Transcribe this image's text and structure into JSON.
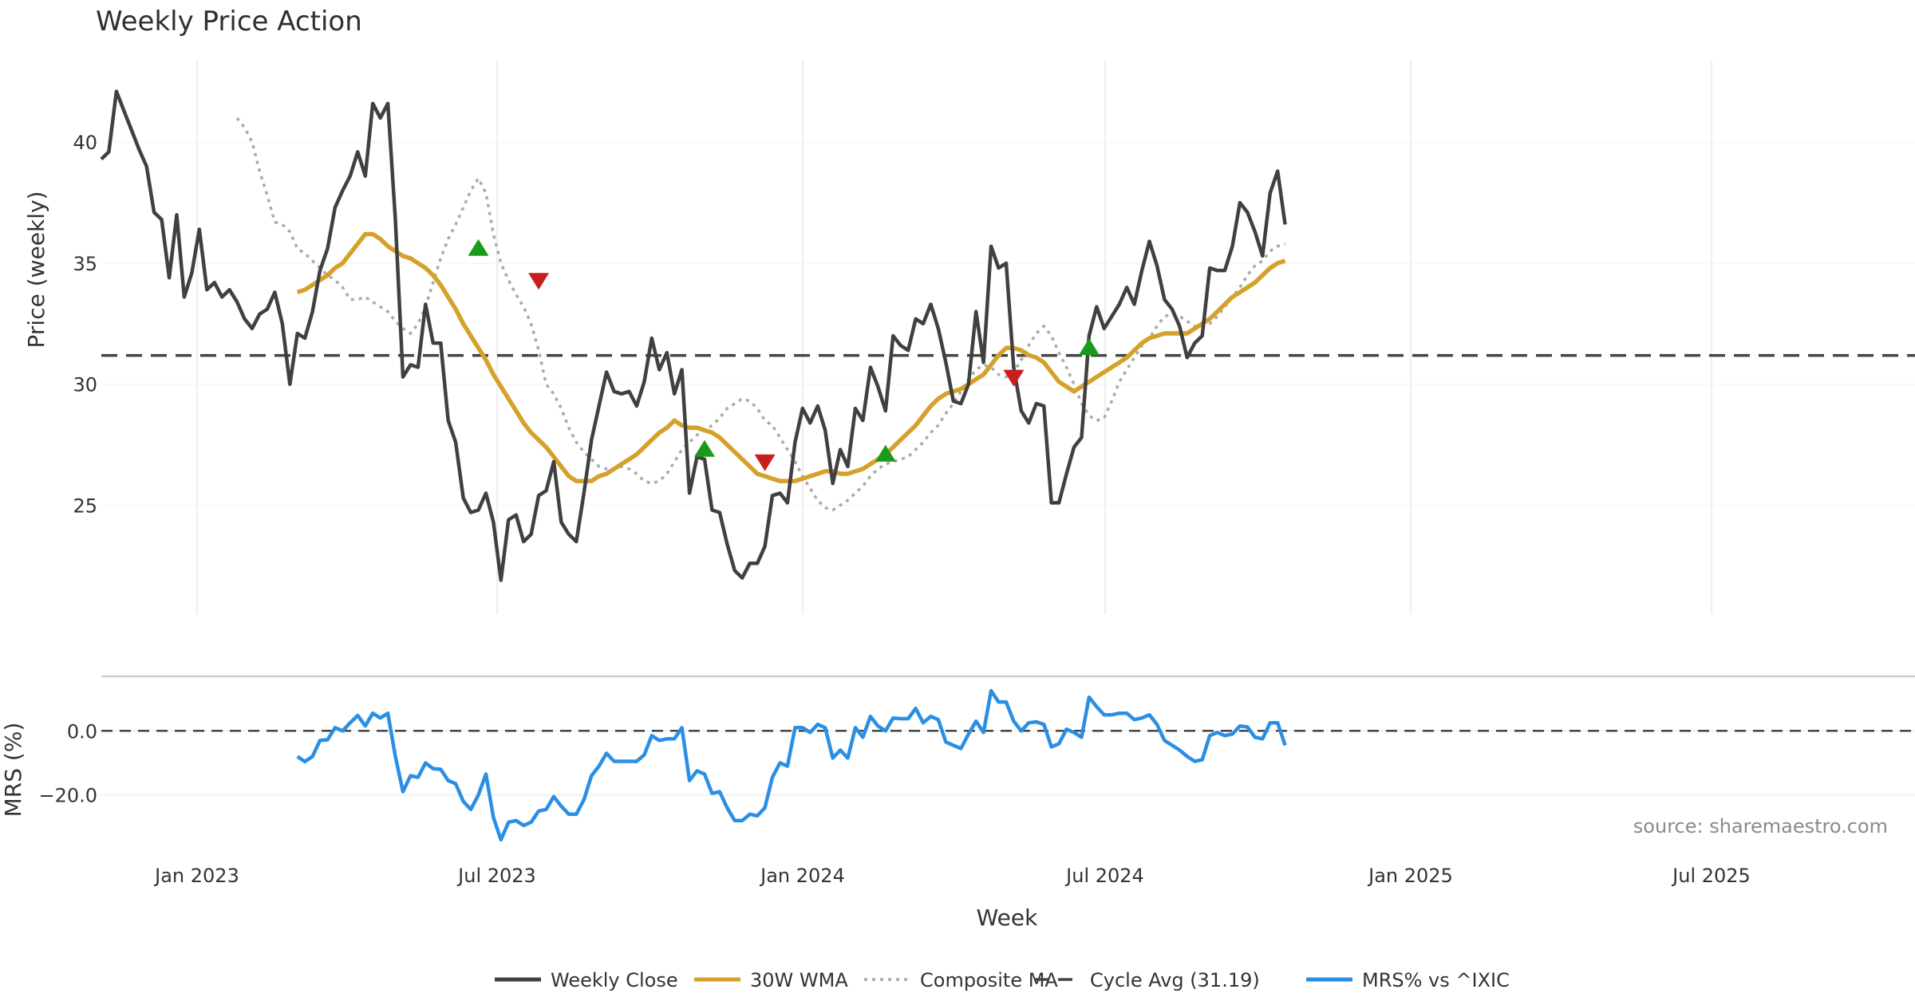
{
  "chart_data": {
    "type": "line",
    "title": "Weekly Price Action",
    "source": "source: sharemaestro.com",
    "x_ticks": [
      "Jan 2023",
      "Jul 2023",
      "Jan 2024",
      "Jul 2024",
      "Jan 2025",
      "Jul 2025"
    ],
    "xlabel": "Week",
    "price_panel": {
      "ylabel": "Price (weekly)",
      "ylim": [
        20.5,
        43.5
      ],
      "y_ticks": [
        25,
        30,
        35,
        40
      ],
      "cycle_avg": 31.19,
      "weekly_close": [
        39.3,
        39.6,
        42.1,
        41.3,
        40.5,
        39.7,
        39.0,
        37.1,
        36.8,
        34.4,
        37.0,
        33.6,
        34.6,
        36.4,
        33.9,
        34.2,
        33.6,
        33.9,
        33.4,
        32.7,
        32.3,
        32.9,
        33.1,
        33.8,
        32.5,
        30.0,
        32.1,
        31.9,
        33.0,
        34.7,
        35.6,
        37.3,
        38.0,
        38.6,
        39.6,
        38.6,
        41.6,
        41.0,
        41.6,
        36.8,
        30.3,
        30.8,
        30.7,
        33.3,
        31.7,
        31.7,
        28.5,
        27.6,
        25.3,
        24.7,
        24.8,
        25.5,
        24.3,
        21.9,
        24.4,
        24.6,
        23.5,
        23.8,
        25.4,
        25.6,
        26.8,
        24.3,
        23.8,
        23.5,
        25.5,
        27.7,
        29.1,
        30.5,
        29.7,
        29.6,
        29.7,
        29.1,
        30.1,
        31.9,
        30.6,
        31.3,
        29.6,
        30.6,
        25.5,
        27.0,
        26.9,
        24.8,
        24.7,
        23.4,
        22.3,
        22.0,
        22.6,
        22.6,
        23.3,
        25.4,
        25.5,
        25.1,
        27.6,
        29.0,
        28.4,
        29.1,
        28.1,
        25.9,
        27.3,
        26.6,
        29.0,
        28.5,
        30.7,
        29.9,
        28.9,
        32.0,
        31.6,
        31.4,
        32.7,
        32.5,
        33.3,
        32.3,
        30.9,
        29.3,
        29.2,
        30.0,
        33.0,
        30.9,
        35.7,
        34.8,
        35.0,
        30.7,
        28.9,
        28.4,
        29.2,
        29.1,
        25.1,
        25.1,
        26.3,
        27.4,
        27.8,
        32.0,
        33.2,
        32.3,
        32.8,
        33.3,
        34.0,
        33.3,
        34.7,
        35.9,
        34.9,
        33.5,
        33.1,
        32.4,
        31.1,
        31.7,
        32.0,
        34.8,
        34.7,
        34.7,
        35.7,
        37.5,
        37.1,
        36.3,
        35.3,
        37.9,
        38.8,
        36.6
      ],
      "wma_30w": [
        33.8,
        33.9,
        34.1,
        34.3,
        34.5,
        34.8,
        35.0,
        35.4,
        35.8,
        36.2,
        36.2,
        36.0,
        35.7,
        35.5,
        35.3,
        35.2,
        35.0,
        34.8,
        34.5,
        34.1,
        33.6,
        33.1,
        32.5,
        32.0,
        31.5,
        31.0,
        30.4,
        29.9,
        29.4,
        28.9,
        28.4,
        28.0,
        27.7,
        27.4,
        27.0,
        26.6,
        26.2,
        26.0,
        26.0,
        26.0,
        26.2,
        26.3,
        26.5,
        26.7,
        26.9,
        27.1,
        27.4,
        27.7,
        28.0,
        28.2,
        28.5,
        28.3,
        28.2,
        28.2,
        28.1,
        28.0,
        27.8,
        27.5,
        27.2,
        26.9,
        26.6,
        26.3,
        26.2,
        26.1,
        26.0,
        26.0,
        26.0,
        26.1,
        26.2,
        26.3,
        26.4,
        26.4,
        26.3,
        26.3,
        26.4,
        26.5,
        26.7,
        26.9,
        27.1,
        27.4,
        27.7,
        28.0,
        28.3,
        28.7,
        29.1,
        29.4,
        29.6,
        29.7,
        29.8,
        30.0,
        30.2,
        30.4,
        30.8,
        31.2,
        31.5,
        31.5,
        31.4,
        31.2,
        31.1,
        30.9,
        30.5,
        30.1,
        29.9,
        29.7,
        29.9,
        30.1,
        30.3,
        30.5,
        30.7,
        30.9,
        31.1,
        31.4,
        31.7,
        31.9,
        32.0,
        32.1,
        32.1,
        32.1,
        32.1,
        32.3,
        32.5,
        32.7,
        33.0,
        33.3,
        33.6,
        33.8,
        34.0,
        34.2,
        34.5,
        34.8,
        35.0,
        35.1
      ],
      "composite_ma": [
        41.0,
        40.6,
        40.0,
        38.8,
        37.8,
        36.7,
        36.6,
        36.3,
        35.6,
        35.4,
        35.1,
        34.8,
        34.5,
        34.3,
        34.0,
        33.5,
        33.5,
        33.6,
        33.4,
        33.2,
        33.0,
        32.6,
        32.3,
        32.1,
        32.5,
        33.2,
        34.2,
        35.2,
        36.0,
        36.6,
        37.3,
        38.0,
        38.5,
        37.9,
        36.2,
        35.0,
        34.3,
        33.7,
        33.2,
        32.5,
        31.4,
        30.0,
        29.6,
        29.0,
        28.2,
        27.6,
        27.2,
        26.9,
        26.6,
        26.5,
        26.5,
        26.6,
        26.5,
        26.3,
        26.0,
        25.9,
        26.0,
        26.3,
        26.8,
        27.3,
        27.6,
        27.9,
        28.1,
        28.3,
        28.6,
        29.0,
        29.2,
        29.4,
        29.3,
        29.0,
        28.5,
        28.3,
        27.8,
        27.3,
        26.8,
        26.2,
        25.7,
        25.2,
        24.9,
        24.8,
        25.0,
        25.2,
        25.5,
        25.8,
        26.2,
        26.5,
        26.7,
        26.8,
        26.9,
        27.0,
        27.3,
        27.6,
        28.0,
        28.3,
        28.8,
        29.2,
        29.7,
        30.2,
        30.6,
        30.8,
        30.7,
        30.4,
        30.3,
        30.5,
        31.0,
        31.6,
        32.1,
        32.4,
        32.0,
        31.3,
        30.7,
        30.0,
        29.2,
        28.7,
        28.5,
        28.6,
        29.3,
        30.1,
        30.6,
        31.1,
        31.6,
        31.9,
        32.4,
        32.8,
        32.9,
        32.8,
        32.6,
        32.4,
        32.4,
        32.5,
        32.8,
        33.2,
        33.6,
        34.0,
        34.5,
        34.9,
        35.1,
        35.5,
        35.7,
        35.8
      ],
      "buy_signals": [
        {
          "x": 24,
          "y": 35.6
        },
        {
          "x": 54,
          "y": 27.3
        },
        {
          "x": 78,
          "y": 27.1
        },
        {
          "x": 105,
          "y": 31.5
        }
      ],
      "sell_signals": [
        {
          "x": 32,
          "y": 34.3
        },
        {
          "x": 62,
          "y": 26.8
        },
        {
          "x": 95,
          "y": 30.3
        }
      ]
    },
    "mrs_panel": {
      "ylabel": "MRS (%)",
      "ylim": [
        -37,
        14
      ],
      "y_ticks": [
        0.0,
        -20.0
      ],
      "y_tick_labels": [
        "0.0",
        "−20.0"
      ],
      "values": [
        -8.0,
        -9.6,
        -8.0,
        -3.0,
        -2.8,
        1.0,
        0.0,
        2.5,
        4.8,
        1.5,
        5.5,
        4.0,
        5.5,
        -8.0,
        -19.0,
        -14.0,
        -14.5,
        -10.0,
        -11.8,
        -12.0,
        -15.5,
        -16.5,
        -22.0,
        -24.5,
        -20.0,
        -13.5,
        -27.0,
        -34.0,
        -28.5,
        -28.0,
        -29.5,
        -28.5,
        -25.0,
        -24.5,
        -20.5,
        -23.5,
        -26.0,
        -26.0,
        -21.5,
        -14.0,
        -11.0,
        -7.0,
        -9.5,
        -9.5,
        -9.5,
        -9.5,
        -7.5,
        -1.5,
        -3.0,
        -2.5,
        -2.5,
        1.0,
        -15.5,
        -12.5,
        -13.5,
        -19.5,
        -19.0,
        -24.0,
        -28.0,
        -28.0,
        -26.0,
        -26.5,
        -24.0,
        -14.5,
        -10.0,
        -11.0,
        1.0,
        1.0,
        -0.5,
        2.0,
        1.0,
        -8.5,
        -6.0,
        -8.5,
        1.0,
        -2.0,
        4.5,
        1.5,
        0.0,
        4.0,
        3.8,
        3.8,
        7.0,
        2.5,
        4.5,
        3.5,
        -3.5,
        -4.5,
        -5.5,
        -1.0,
        3.0,
        -0.5,
        12.5,
        9.0,
        9.0,
        3.0,
        0.0,
        2.5,
        2.8,
        2.0,
        -5.0,
        -4.0,
        0.5,
        -0.5,
        -2.0,
        10.5,
        7.5,
        5.0,
        5.0,
        5.5,
        5.5,
        3.5,
        4.0,
        5.0,
        2.0,
        -3.0,
        -4.5,
        -6.0,
        -8.0,
        -9.5,
        -9.0,
        -1.5,
        -0.5,
        -1.5,
        -1.0,
        1.5,
        1.2,
        -2.0,
        -2.5,
        2.5,
        2.5,
        -4.5
      ]
    },
    "legend": [
      {
        "label": "Weekly Close",
        "color": "#404040",
        "style": "solid"
      },
      {
        "label": "30W WMA",
        "color": "#D4A22A",
        "style": "solid"
      },
      {
        "label": "Composite MA",
        "color": "#AAAAAA",
        "style": "dotted"
      },
      {
        "label": "Cycle Avg (31.19)",
        "color": "#444444",
        "style": "dashed"
      },
      {
        "label": "MRS% vs ^IXIC",
        "color": "#2A8FE4",
        "style": "solid"
      }
    ],
    "colors": {
      "close": "#404040",
      "wma": "#D4A22A",
      "composite": "#AAAAAA",
      "cycle": "#444444",
      "mrs": "#2A8FE4",
      "buy": "#1A9A1A",
      "sell": "#C81E1E",
      "grid": "#E8E8E8"
    }
  }
}
